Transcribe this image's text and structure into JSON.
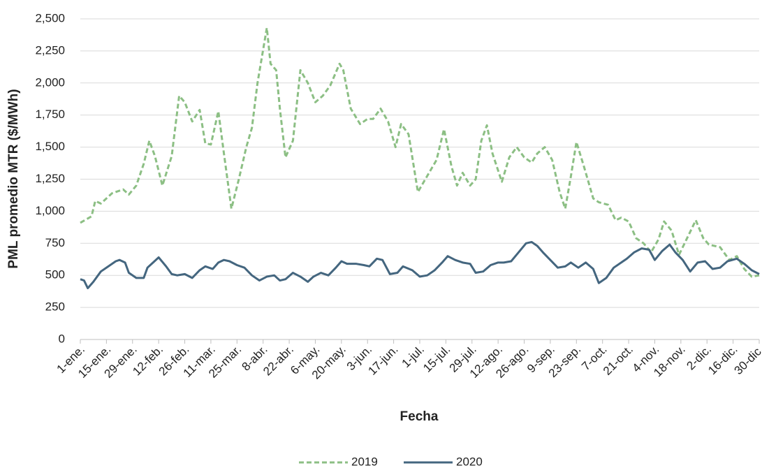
{
  "chart_data": {
    "type": "line",
    "x_label": "Fecha",
    "y_label": "PML promedio MTR ($/MWh)",
    "xlim": [
      1,
      365
    ],
    "xticks": [
      {
        "value": 1,
        "label": "1-ene."
      },
      {
        "value": 15,
        "label": "15-ene."
      },
      {
        "value": 29,
        "label": "29-ene."
      },
      {
        "value": 43,
        "label": "12-feb."
      },
      {
        "value": 57,
        "label": "26-feb."
      },
      {
        "value": 71,
        "label": "11-mar."
      },
      {
        "value": 85,
        "label": "25-mar."
      },
      {
        "value": 99,
        "label": "8-abr."
      },
      {
        "value": 113,
        "label": "22-abr."
      },
      {
        "value": 127,
        "label": "6-may."
      },
      {
        "value": 141,
        "label": "20-may."
      },
      {
        "value": 155,
        "label": "3-jun."
      },
      {
        "value": 169,
        "label": "17-jun."
      },
      {
        "value": 183,
        "label": "1-jul."
      },
      {
        "value": 197,
        "label": "15-jul."
      },
      {
        "value": 211,
        "label": "29-jul."
      },
      {
        "value": 225,
        "label": "12-ago."
      },
      {
        "value": 239,
        "label": "26-ago."
      },
      {
        "value": 253,
        "label": "9-sep."
      },
      {
        "value": 267,
        "label": "23-sep."
      },
      {
        "value": 281,
        "label": "7-oct."
      },
      {
        "value": 295,
        "label": "21-oct."
      },
      {
        "value": 309,
        "label": "4-nov."
      },
      {
        "value": 323,
        "label": "18-nov."
      },
      {
        "value": 337,
        "label": "2-dic."
      },
      {
        "value": 351,
        "label": "16-dic."
      },
      {
        "value": 365,
        "label": "30-dic."
      }
    ],
    "ylim": [
      0,
      2500
    ],
    "yticks": [
      0,
      250,
      500,
      750,
      {
        "value": 1000,
        "label": "1,000"
      },
      {
        "value": 1250,
        "label": "1,250"
      },
      {
        "value": 1500,
        "label": "1,500"
      },
      {
        "value": 1750,
        "label": "1,750"
      },
      {
        "value": 2000,
        "label": "2,000"
      },
      {
        "value": 2250,
        "label": "2,250"
      },
      {
        "value": 2500,
        "label": "2,500"
      }
    ],
    "grid": true,
    "legend": "bottom",
    "series": [
      {
        "name": "2019",
        "color": "#8cbf84",
        "dashed": true,
        "x": [
          1,
          7,
          9,
          12,
          18,
          24,
          27,
          31,
          35,
          38,
          41,
          45,
          50,
          54,
          57,
          61,
          65,
          68,
          71,
          75,
          78,
          82,
          86,
          90,
          93,
          96,
          101,
          103,
          106,
          108,
          111,
          115,
          119,
          123,
          127,
          131,
          135,
          140,
          142,
          146,
          151,
          155,
          158,
          162,
          166,
          170,
          173,
          177,
          182,
          186,
          192,
          196,
          200,
          203,
          206,
          210,
          213,
          216,
          219,
          222,
          227,
          231,
          235,
          239,
          243,
          246,
          250,
          254,
          258,
          261,
          264,
          267,
          271,
          276,
          279,
          284,
          288,
          291,
          295,
          299,
          303,
          307,
          311,
          314,
          318,
          322,
          326,
          331,
          335,
          338,
          344,
          349,
          353,
          357,
          361,
          365
        ],
        "values": [
          910,
          960,
          1080,
          1060,
          1140,
          1170,
          1130,
          1200,
          1370,
          1550,
          1430,
          1200,
          1430,
          1900,
          1850,
          1700,
          1790,
          1530,
          1520,
          1780,
          1450,
          1020,
          1250,
          1500,
          1650,
          2000,
          2430,
          2150,
          2100,
          1800,
          1420,
          1550,
          2100,
          2000,
          1850,
          1900,
          1980,
          2150,
          2100,
          1800,
          1680,
          1720,
          1720,
          1800,
          1700,
          1500,
          1680,
          1600,
          1150,
          1250,
          1400,
          1640,
          1350,
          1200,
          1300,
          1200,
          1250,
          1550,
          1670,
          1450,
          1230,
          1420,
          1500,
          1420,
          1380,
          1450,
          1500,
          1400,
          1150,
          1020,
          1270,
          1540,
          1350,
          1100,
          1070,
          1050,
          930,
          950,
          920,
          790,
          750,
          680,
          780,
          920,
          850,
          660,
          780,
          930,
          790,
          740,
          720,
          620,
          650,
          550,
          490,
          500
        ]
      },
      {
        "name": "2020",
        "color": "#44667f",
        "dashed": false,
        "x": [
          1,
          3,
          5,
          8,
          12,
          16,
          20,
          22,
          25,
          27,
          31,
          35,
          37,
          40,
          43,
          47,
          50,
          53,
          57,
          61,
          65,
          68,
          72,
          75,
          78,
          81,
          85,
          89,
          93,
          97,
          101,
          105,
          108,
          111,
          115,
          119,
          123,
          126,
          130,
          134,
          138,
          141,
          144,
          149,
          153,
          156,
          160,
          163,
          167,
          171,
          174,
          179,
          183,
          187,
          191,
          195,
          198,
          202,
          206,
          210,
          213,
          217,
          221,
          225,
          228,
          232,
          236,
          240,
          243,
          246,
          249,
          253,
          257,
          261,
          264,
          268,
          272,
          276,
          279,
          283,
          287,
          291,
          294,
          298,
          302,
          306,
          309,
          313,
          317,
          320,
          324,
          328,
          332,
          336,
          340,
          344,
          348,
          353,
          357,
          361,
          365
        ],
        "values": [
          470,
          460,
          400,
          450,
          530,
          570,
          610,
          620,
          600,
          520,
          480,
          480,
          560,
          600,
          640,
          570,
          510,
          500,
          510,
          480,
          540,
          570,
          550,
          600,
          620,
          610,
          580,
          560,
          500,
          460,
          490,
          500,
          460,
          470,
          520,
          490,
          450,
          490,
          520,
          500,
          560,
          610,
          590,
          590,
          580,
          570,
          630,
          620,
          510,
          520,
          570,
          540,
          490,
          500,
          540,
          600,
          650,
          620,
          600,
          590,
          520,
          530,
          580,
          600,
          600,
          610,
          680,
          750,
          760,
          730,
          680,
          620,
          560,
          570,
          600,
          560,
          600,
          550,
          440,
          480,
          560,
          600,
          630,
          680,
          710,
          700,
          620,
          690,
          740,
          680,
          620,
          530,
          600,
          610,
          550,
          560,
          610,
          630,
          590,
          540,
          510
        ]
      }
    ]
  }
}
